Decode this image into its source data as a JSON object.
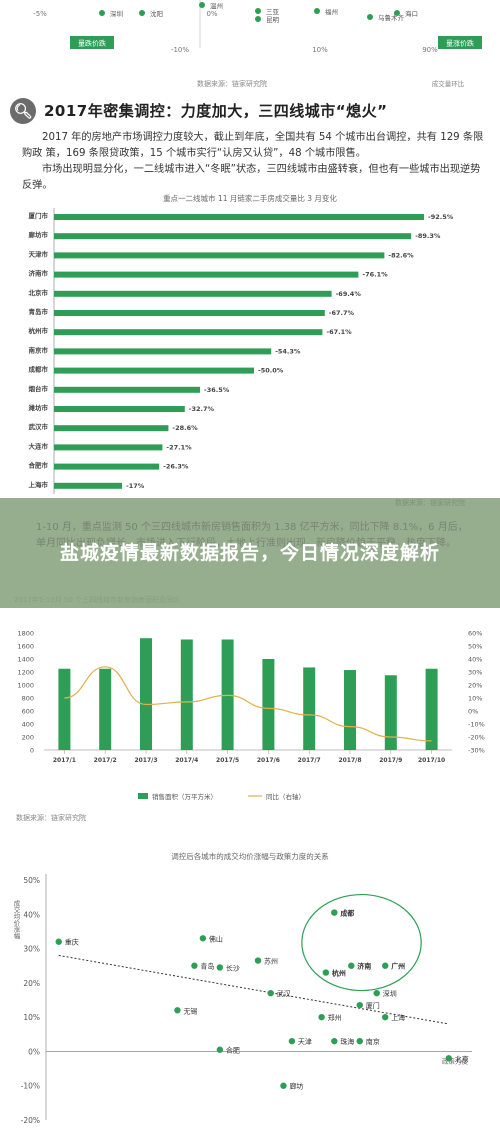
{
  "top_chart": {
    "tick_labels": [
      "-5%",
      "-10%",
      "0%",
      "10%",
      "90%"
    ],
    "badges": {
      "left": "量跌价跌",
      "right": "量涨价跌"
    },
    "city_labels": [
      "深圳",
      "沈阳",
      "温州",
      "昆明",
      "三亚",
      "福州",
      "乌鲁木齐",
      "海口"
    ],
    "source": "数据来源：链家研究院",
    "axis_note": "成交量环比"
  },
  "section": {
    "icon": "magnifier-icon",
    "title": "2017年密集调控：力度加大，三四线城市“熄火”",
    "paragraph_1": "2017 年的房地产市场调控力度较大，截止到年底，全国共有 54 个城市出台调控，共有 129 条限购政 策，169 条限贷政策，15 个城市实行“认房又认贷”，48 个城市限售。",
    "paragraph_2": "市场出现明显分化，一二线城市进入“冬眠”状态，三四线城市由盛转衰，但也有一些城市出现逆势反弹。"
  },
  "hbar_chart_meta": {
    "title": "重点一二线城市 11 月链家二手房成交量比 3 月变化",
    "source": "数据来源：链家研究院",
    "accent": "#2e9e57"
  },
  "banner": {
    "background_text": "1-10 月，重点监测 50 个三四线城市新房销售面积为 1.38 亿平方米，同比下降 8.1%，6 月后，单月同比出现负增长，市场进入下行阶段，土地上行准则出现，新房降价趋于平稳，热度下降。",
    "title": "盐城疫情最新数据报告，今日情况深度解析"
  },
  "combo_chart_meta": {
    "left_badge_text": "2017年1-10月 50 个三四线城市新房销售面积及同比",
    "legend_bar": "销售面积（万平方米）",
    "legend_line": "同比（右轴）",
    "source": "数据来源：链家研究院",
    "bar_color": "#2e9e57",
    "line_color": "#e0b050"
  },
  "scatter_chart_meta": {
    "title": "调控后各城市的成交均价涨幅与政策力度的关系",
    "y_axis_label": "成交均价涨幅",
    "x_axis_label": "政策力度",
    "dot_color": "#2e9e57"
  },
  "chart_data": [
    {
      "type": "bar",
      "orientation": "horizontal",
      "title": "重点一二线城市 11 月链家二手房成交量比 3 月变化",
      "categories": [
        "厦门市",
        "廊坊市",
        "天津市",
        "济南市",
        "北京市",
        "青岛市",
        "杭州市",
        "南京市",
        "成都市",
        "烟台市",
        "潍坊市",
        "武汉市",
        "大连市",
        "合肥市",
        "上海市"
      ],
      "values": [
        -92.5,
        -89.3,
        -82.6,
        -76.1,
        -69.4,
        -67.7,
        -67.1,
        -54.3,
        -50.0,
        -36.5,
        -32.7,
        -28.6,
        -27.1,
        -26.3,
        -17
      ],
      "value_labels": [
        "-92.5%",
        "-89.3%",
        "-82.6%",
        "-76.1%",
        "-69.4%",
        "-67.7%",
        "-67.1%",
        "-54.3%",
        "-50.0%",
        "-36.5%",
        "-32.7%",
        "-28.6%",
        "-27.1%",
        "-26.3%",
        "-17%"
      ]
    },
    {
      "type": "bar",
      "categories": [
        "2017/1",
        "2017/2",
        "2017/3",
        "2017/4",
        "2017/5",
        "2017/6",
        "2017/7",
        "2017/8",
        "2017/9",
        "2017/10"
      ],
      "series": [
        {
          "name": "销售面积（万平方米）",
          "type": "bar",
          "axis": "left",
          "values": [
            1250,
            1250,
            1720,
            1700,
            1700,
            1400,
            1270,
            1230,
            1150,
            1250
          ]
        },
        {
          "name": "同比（右轴）",
          "type": "line",
          "axis": "right",
          "values": [
            10,
            34,
            5,
            7,
            12,
            2,
            -3,
            -12,
            -20,
            -23
          ]
        }
      ],
      "ylim_left": [
        0,
        1800
      ],
      "yticks_left": [
        "0",
        "200",
        "400",
        "600",
        "800",
        "1000",
        "1200",
        "1400",
        "1600",
        "1800"
      ],
      "ylim_right": [
        -30,
        60
      ],
      "yticks_right": [
        "-30%",
        "-20%",
        "-10%",
        "0%",
        "10%",
        "20%",
        "30%",
        "40%",
        "50%",
        "60%"
      ]
    },
    {
      "type": "scatter",
      "title": "调控后各城市的成交均价涨幅与政策力度的关系",
      "ylabel": "成交均价涨幅",
      "xlabel": "政策力度",
      "ylim": [
        -20,
        50
      ],
      "yticks": [
        "-20%",
        "-10%",
        "0%",
        "10%",
        "20%",
        "30%",
        "40%",
        "50%"
      ],
      "xlim": [
        0,
        10
      ],
      "points": [
        {
          "label": "重庆",
          "x": 0.3,
          "y": 32
        },
        {
          "label": "佛山",
          "x": 3.7,
          "y": 33
        },
        {
          "label": "青岛",
          "x": 3.5,
          "y": 25
        },
        {
          "label": "长沙",
          "x": 4.1,
          "y": 24.5
        },
        {
          "label": "苏州",
          "x": 5.0,
          "y": 26.5
        },
        {
          "label": "成都",
          "x": 6.8,
          "y": 40.5
        },
        {
          "label": "杭州",
          "x": 6.6,
          "y": 23
        },
        {
          "label": "济南",
          "x": 7.2,
          "y": 25
        },
        {
          "label": "广州",
          "x": 8.0,
          "y": 25
        },
        {
          "label": "武汉",
          "x": 5.3,
          "y": 17
        },
        {
          "label": "深圳",
          "x": 7.8,
          "y": 17
        },
        {
          "label": "厦门",
          "x": 7.4,
          "y": 13.5
        },
        {
          "label": "无锡",
          "x": 3.1,
          "y": 12
        },
        {
          "label": "郑州",
          "x": 6.5,
          "y": 10
        },
        {
          "label": "上海",
          "x": 8.0,
          "y": 10
        },
        {
          "label": "天津",
          "x": 5.8,
          "y": 3
        },
        {
          "label": "珠海",
          "x": 6.8,
          "y": 3
        },
        {
          "label": "南京",
          "x": 7.4,
          "y": 3
        },
        {
          "label": "合肥",
          "x": 4.1,
          "y": 0.5
        },
        {
          "label": "北京",
          "x": 9.5,
          "y": -2
        },
        {
          "label": "廊坊",
          "x": 5.6,
          "y": -10
        }
      ],
      "trendline": {
        "from": [
          0.3,
          28
        ],
        "to": [
          9.5,
          8
        ]
      },
      "highlight_group": [
        "成都",
        "杭州",
        "济南",
        "广州"
      ]
    }
  ]
}
